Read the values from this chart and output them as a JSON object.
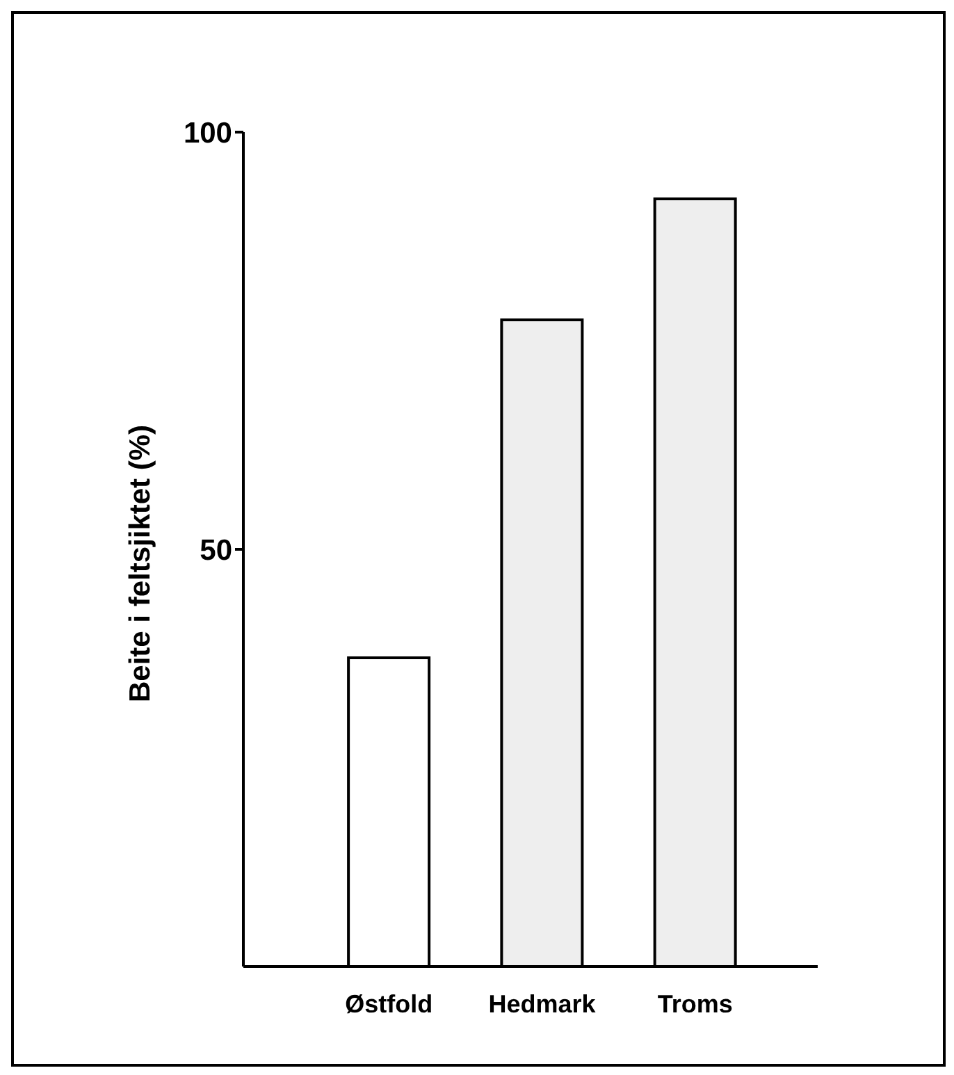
{
  "chart_data": {
    "type": "bar",
    "ylabel": "Beite i feltsjiktet (%)",
    "categories": [
      "Østfold",
      "Hedmark",
      "Troms"
    ],
    "values": [
      37,
      77.5,
      92
    ],
    "colors": [
      "#ffffff",
      "#eeeeee",
      "#eeeeee"
    ],
    "ylim": [
      0,
      100
    ],
    "yticks": [
      50,
      100
    ],
    "grid": false,
    "legend": false
  }
}
